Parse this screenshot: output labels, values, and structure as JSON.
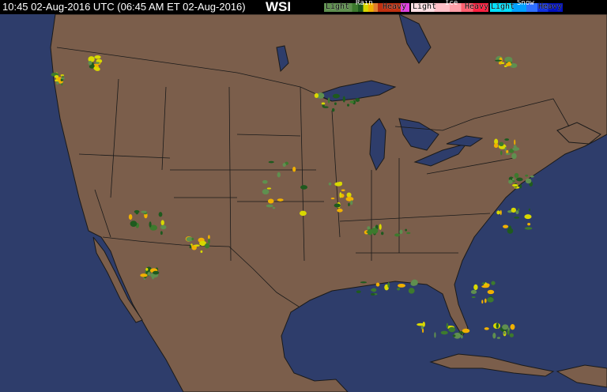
{
  "header": {
    "timestamp": "10:45 02-Aug-2016 UTC  (06:45 AM ET 02-Aug-2016)",
    "logo": "WSI"
  },
  "legend": {
    "rain": {
      "title": "Rain",
      "light": "Light",
      "heavy": "Heavy",
      "colors": [
        "#5f8f4f",
        "#3d7a2d",
        "#1e5a1e",
        "#d8d800",
        "#f0b000",
        "#e08030",
        "#c03010",
        "#e040e0"
      ]
    },
    "ice": {
      "title": "Ice",
      "light": "Light",
      "heavy": "Heavy",
      "colors": [
        "#ffc0c8",
        "#ffa0a8",
        "#ff8090",
        "#ff4060",
        "#ff2040"
      ]
    },
    "snow": {
      "title": "Snow",
      "light": "Light",
      "heavy": "Heavy",
      "colors": [
        "#00e0ff",
        "#00a0ff",
        "#3070ff",
        "#1030e0",
        "#0010c0"
      ]
    }
  },
  "map": {
    "land_color": "#7b5e4b",
    "water_color": "#2e3d6b",
    "border_color": "#1a1a1a"
  }
}
